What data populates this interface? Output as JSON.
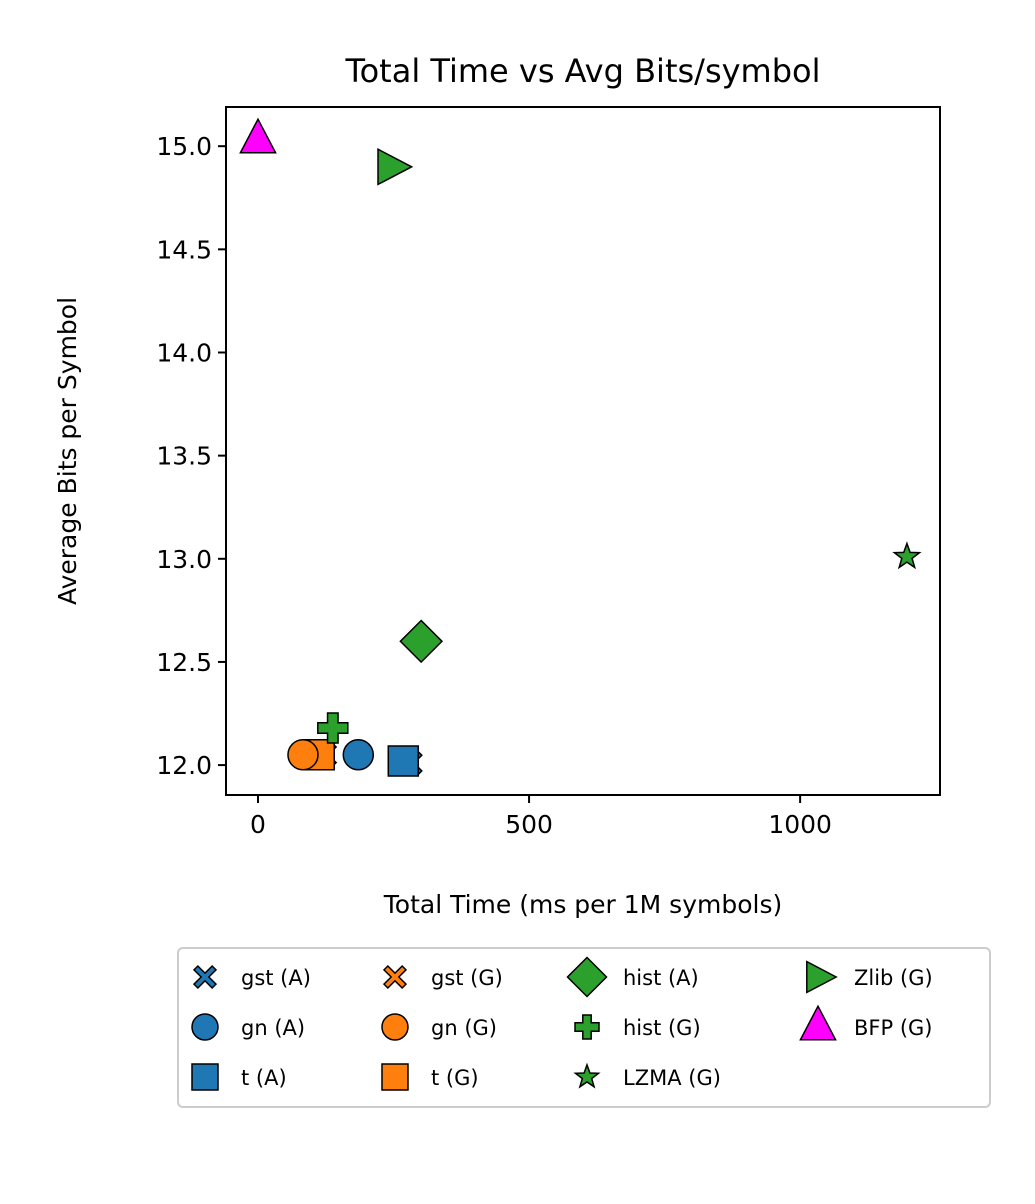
{
  "chart_data": {
    "type": "scatter",
    "title": "Total Time vs Avg Bits/symbol",
    "xlabel": "Total Time (ms per 1M symbols)",
    "ylabel": "Average Bits per Symbol",
    "xlim": [
      -59,
      1258
    ],
    "ylim": [
      11.855,
      15.19
    ],
    "xticks": [
      0,
      500,
      1000
    ],
    "yticks": [
      12.0,
      12.5,
      13.0,
      13.5,
      14.0,
      14.5,
      15.0
    ],
    "xtick_labels": [
      "0",
      "500",
      "1000"
    ],
    "ytick_labels": [
      "12.0",
      "12.5",
      "13.0",
      "13.5",
      "14.0",
      "14.5",
      "15.0"
    ],
    "grid": false,
    "legend_placement": "below",
    "series": [
      {
        "name": "gst (A)",
        "marker": "x",
        "color": "#1f77b4",
        "x": 280,
        "y": 12.01
      },
      {
        "name": "gn (A)",
        "marker": "circle",
        "color": "#1f77b4",
        "x": 185,
        "y": 12.05
      },
      {
        "name": "t (A)",
        "marker": "square",
        "color": "#1f77b4",
        "x": 268,
        "y": 12.02
      },
      {
        "name": "gst (G)",
        "marker": "x",
        "color": "#ff7f0e",
        "x": 122,
        "y": 12.05
      },
      {
        "name": "gn (G)",
        "marker": "circle",
        "color": "#ff7f0e",
        "x": 83,
        "y": 12.05
      },
      {
        "name": "t (G)",
        "marker": "square",
        "color": "#ff7f0e",
        "x": 113,
        "y": 12.05
      },
      {
        "name": "hist (A)",
        "marker": "diamond",
        "color": "#2ca02c",
        "x": 301,
        "y": 12.6
      },
      {
        "name": "hist (G)",
        "marker": "plus",
        "color": "#2ca02c",
        "x": 138,
        "y": 12.18
      },
      {
        "name": "LZMA (G)",
        "marker": "star",
        "color": "#2ca02c",
        "x": 1197,
        "y": 13.01
      },
      {
        "name": "Zlib (G)",
        "marker": "triangle-right",
        "color": "#2ca02c",
        "x": 245,
        "y": 14.9
      },
      {
        "name": "BFP (G)",
        "marker": "triangle-up",
        "color": "#ff00ff",
        "x": 0,
        "y": 15.03
      }
    ]
  }
}
